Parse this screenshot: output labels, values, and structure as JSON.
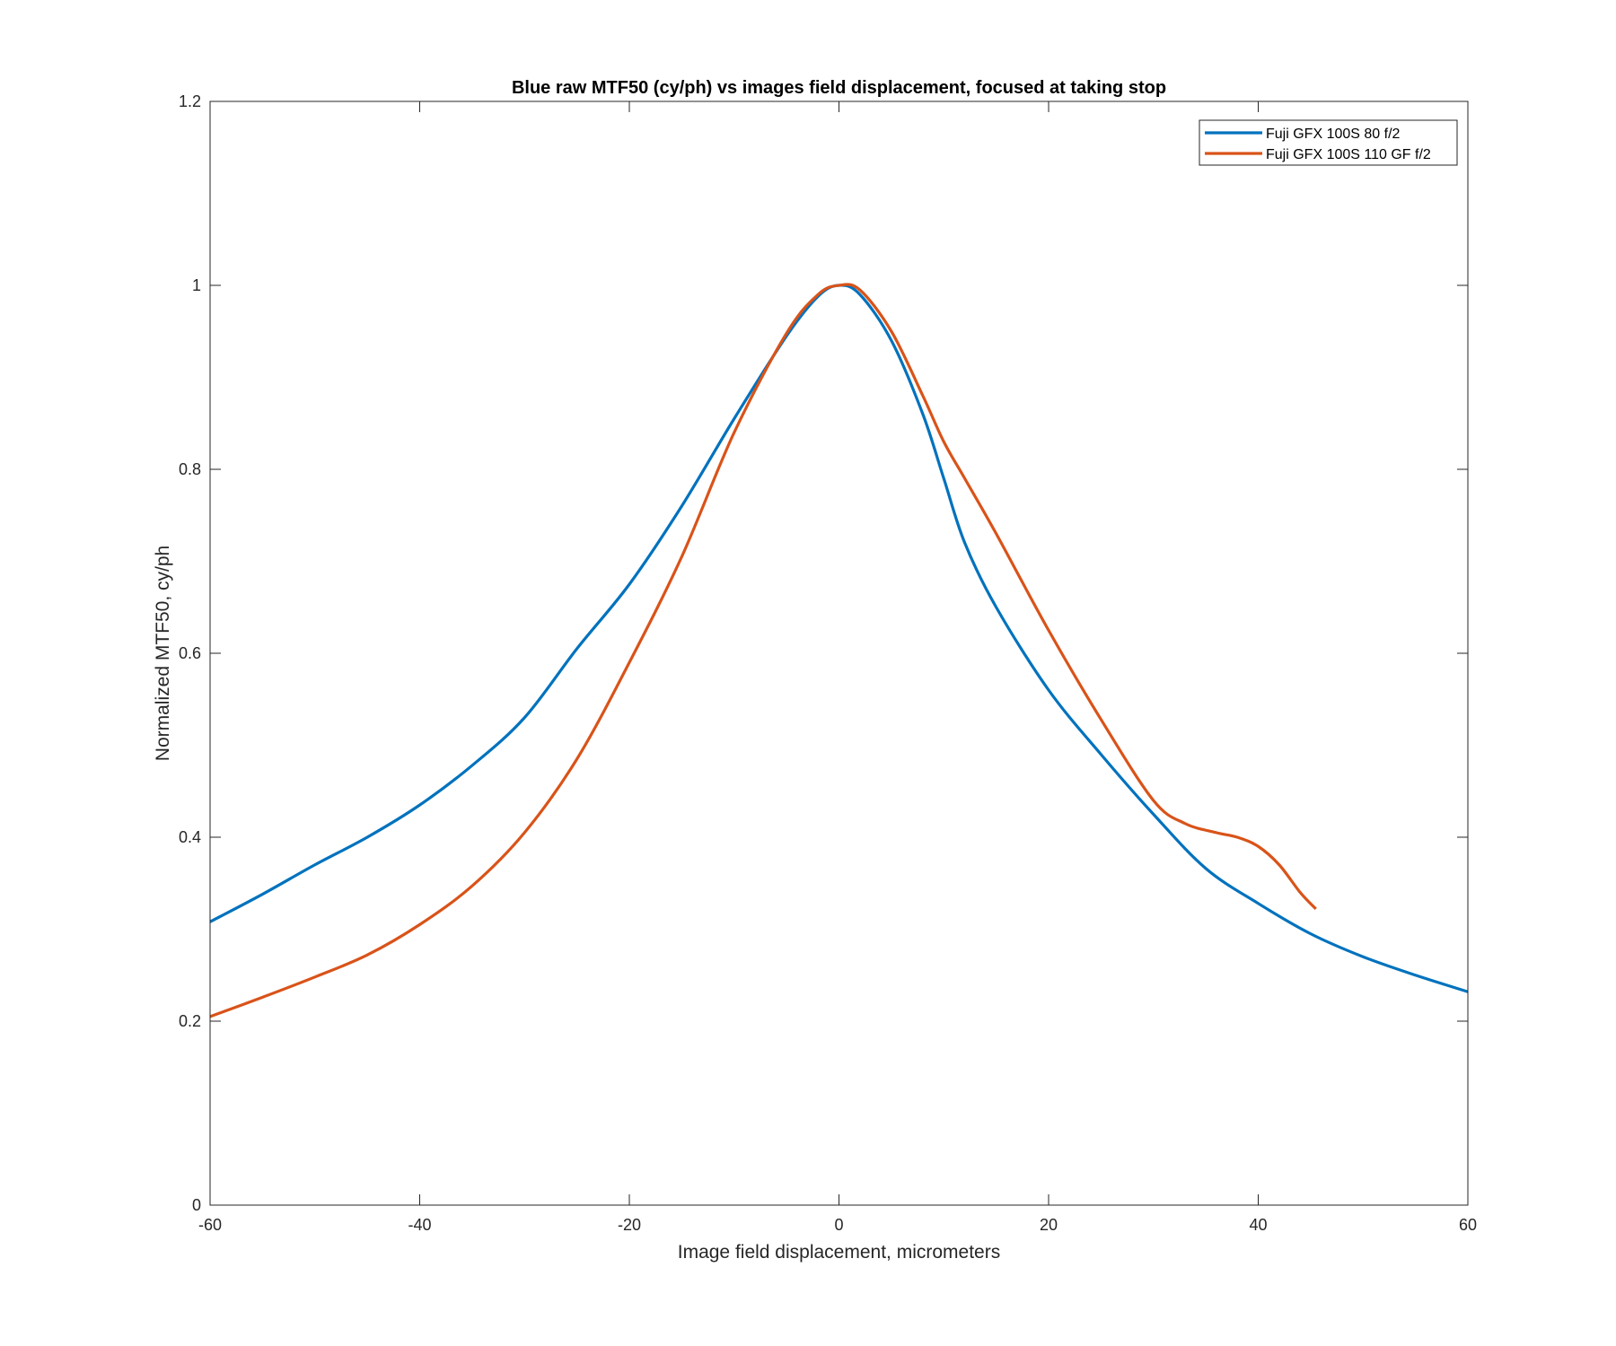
{
  "chart_data": {
    "type": "line",
    "title": "Blue raw MTF50 (cy/ph) vs images field displacement, focused at taking stop",
    "xlabel": "Image field displacement, micrometers",
    "ylabel": "Normalized MTF50, cy/ph",
    "xlim": [
      -60,
      60
    ],
    "ylim": [
      0,
      1.2
    ],
    "xticks": [
      -60,
      -40,
      -20,
      0,
      20,
      40,
      60
    ],
    "yticks": [
      0,
      0.2,
      0.4,
      0.6,
      0.8,
      1,
      1.2
    ],
    "xtick_labels": [
      "-60",
      "-40",
      "-20",
      "0",
      "20",
      "40",
      "60"
    ],
    "ytick_labels": [
      "0",
      "0.2",
      "0.4",
      "0.6",
      "0.8",
      "1",
      "1.2"
    ],
    "grid": false,
    "legend_position": "top-right",
    "series": [
      {
        "name": "Fuji GFX 100S 80 f/2",
        "color": "#0072BD",
        "x": [
          -60,
          -55,
          -50,
          -45,
          -40,
          -35,
          -30,
          -25,
          -20,
          -15,
          -10,
          -5,
          -2,
          0,
          2,
          5,
          8,
          10,
          12,
          15,
          20,
          25,
          30,
          35,
          40,
          45,
          50,
          55,
          60
        ],
        "y": [
          0.308,
          0.338,
          0.37,
          0.4,
          0.435,
          0.478,
          0.53,
          0.605,
          0.675,
          0.76,
          0.855,
          0.945,
          0.988,
          1.0,
          0.99,
          0.94,
          0.86,
          0.79,
          0.72,
          0.65,
          0.56,
          0.49,
          0.425,
          0.366,
          0.328,
          0.295,
          0.27,
          0.25,
          0.232
        ]
      },
      {
        "name": "Fuji GFX 100S 110 GF f/2",
        "color": "#D95319",
        "x": [
          -60,
          -55,
          -50,
          -45,
          -40,
          -35,
          -30,
          -25,
          -20,
          -15,
          -10,
          -5,
          -2,
          0,
          2,
          5,
          8,
          10,
          12,
          15,
          20,
          25,
          30,
          33,
          36,
          38,
          40,
          42,
          44,
          45.5
        ],
        "y": [
          0.205,
          0.226,
          0.248,
          0.272,
          0.305,
          0.347,
          0.405,
          0.485,
          0.59,
          0.705,
          0.84,
          0.948,
          0.99,
          1.0,
          0.995,
          0.95,
          0.88,
          0.83,
          0.79,
          0.73,
          0.625,
          0.528,
          0.44,
          0.415,
          0.405,
          0.4,
          0.39,
          0.37,
          0.34,
          0.322
        ]
      }
    ]
  }
}
